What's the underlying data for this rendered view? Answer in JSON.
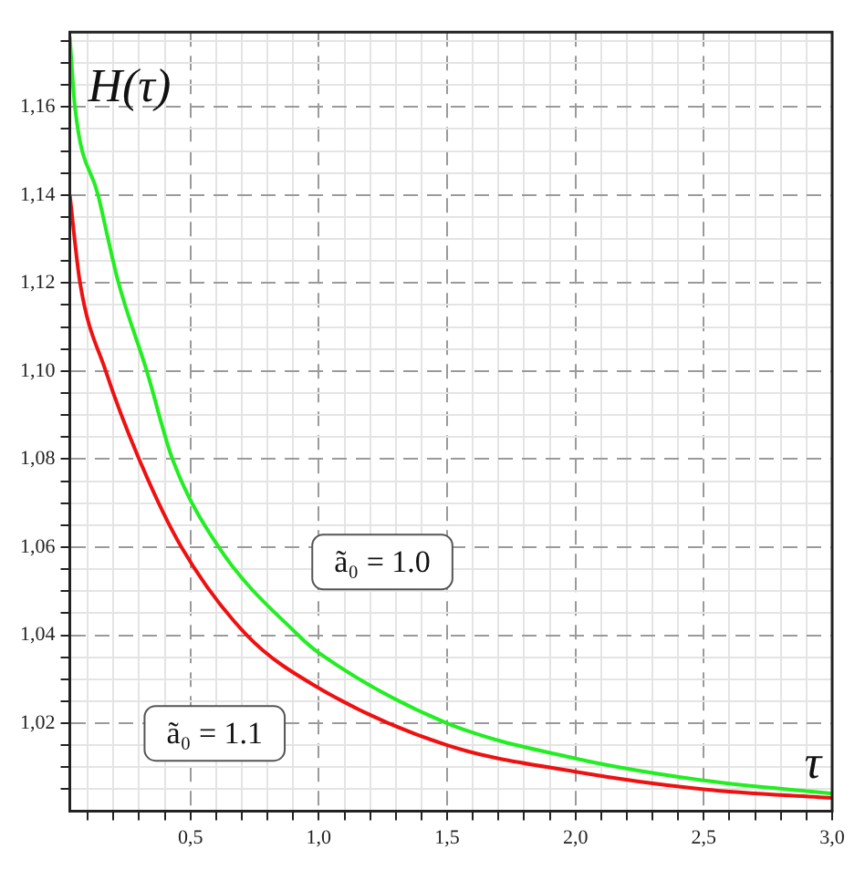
{
  "chart_data": {
    "type": "line",
    "ylabel": "H(τ)",
    "xlabel": "τ",
    "xlim": [
      0.03,
      3.0
    ],
    "xticks": [
      {
        "value": 0.1,
        "label": null
      },
      {
        "value": 0.2,
        "label": null
      },
      {
        "value": 0.3,
        "label": null
      },
      {
        "value": 0.4,
        "label": null
      },
      {
        "value": 0.5,
        "label": "0,5"
      },
      {
        "value": 0.6,
        "label": null
      },
      {
        "value": 0.7,
        "label": null
      },
      {
        "value": 0.8,
        "label": null
      },
      {
        "value": 0.9,
        "label": null
      },
      {
        "value": 1.0,
        "label": "1,0"
      },
      {
        "value": 1.1,
        "label": null
      },
      {
        "value": 1.2,
        "label": null
      },
      {
        "value": 1.3,
        "label": null
      },
      {
        "value": 1.4,
        "label": null
      },
      {
        "value": 1.5,
        "label": "1,5"
      },
      {
        "value": 1.6,
        "label": null
      },
      {
        "value": 1.7,
        "label": null
      },
      {
        "value": 1.8,
        "label": null
      },
      {
        "value": 1.9,
        "label": null
      },
      {
        "value": 2.0,
        "label": "2,0"
      },
      {
        "value": 2.1,
        "label": null
      },
      {
        "value": 2.2,
        "label": null
      },
      {
        "value": 2.3,
        "label": null
      },
      {
        "value": 2.4,
        "label": null
      },
      {
        "value": 2.5,
        "label": "2,5"
      },
      {
        "value": 2.6,
        "label": null
      },
      {
        "value": 2.7,
        "label": null
      },
      {
        "value": 2.8,
        "label": null
      },
      {
        "value": 2.9,
        "label": null
      },
      {
        "value": 3.0,
        "label": "3,0"
      }
    ],
    "ylim": [
      1.0,
      1.177
    ],
    "yticks": [
      {
        "value": 1.005,
        "label": null
      },
      {
        "value": 1.02,
        "label": "1,02"
      },
      {
        "value": 1.01,
        "label": null
      },
      {
        "value": 1.015,
        "label": null
      },
      {
        "value": 1.025,
        "label": null
      },
      {
        "value": 1.03,
        "label": null
      },
      {
        "value": 1.035,
        "label": null
      },
      {
        "value": 1.04,
        "label": "1,04"
      },
      {
        "value": 1.045,
        "label": null
      },
      {
        "value": 1.05,
        "label": null
      },
      {
        "value": 1.055,
        "label": null
      },
      {
        "value": 1.06,
        "label": "1,06"
      },
      {
        "value": 1.065,
        "label": null
      },
      {
        "value": 1.07,
        "label": null
      },
      {
        "value": 1.075,
        "label": null
      },
      {
        "value": 1.08,
        "label": "1,08"
      },
      {
        "value": 1.085,
        "label": null
      },
      {
        "value": 1.09,
        "label": null
      },
      {
        "value": 1.095,
        "label": null
      },
      {
        "value": 1.1,
        "label": "1,10"
      },
      {
        "value": 1.105,
        "label": null
      },
      {
        "value": 1.11,
        "label": null
      },
      {
        "value": 1.115,
        "label": null
      },
      {
        "value": 1.12,
        "label": "1,12"
      },
      {
        "value": 1.125,
        "label": null
      },
      {
        "value": 1.13,
        "label": null
      },
      {
        "value": 1.135,
        "label": null
      },
      {
        "value": 1.14,
        "label": "1,14"
      },
      {
        "value": 1.145,
        "label": null
      },
      {
        "value": 1.15,
        "label": null
      },
      {
        "value": 1.155,
        "label": null
      },
      {
        "value": 1.16,
        "label": "1,16"
      },
      {
        "value": 1.165,
        "label": null
      },
      {
        "value": 1.17,
        "label": null
      },
      {
        "value": 1.175,
        "label": null
      }
    ],
    "grid": true,
    "marker": "none",
    "line_style": "solid",
    "series": [
      {
        "name": "ã₀ = 1.0",
        "color": "#22ee22",
        "x": [
          0.03,
          0.05,
          0.14,
          0.22,
          0.33,
          0.43,
          0.61,
          0.92,
          1.0,
          1.5,
          2.0,
          2.5,
          3.0
        ],
        "values": [
          1.176,
          1.16,
          1.14,
          1.12,
          1.1,
          1.08,
          1.06,
          1.04,
          1.036,
          1.02,
          1.012,
          1.007,
          1.004
        ]
      },
      {
        "name": "ã₀ = 1.1",
        "color": "#ee1111",
        "x": [
          0.03,
          0.07,
          0.17,
          0.3,
          0.465,
          0.72,
          1.0,
          1.5,
          2.0,
          2.5,
          3.0
        ],
        "values": [
          1.14,
          1.12,
          1.1,
          1.08,
          1.06,
          1.04,
          1.028,
          1.015,
          1.009,
          1.005,
          1.003
        ]
      }
    ]
  }
}
